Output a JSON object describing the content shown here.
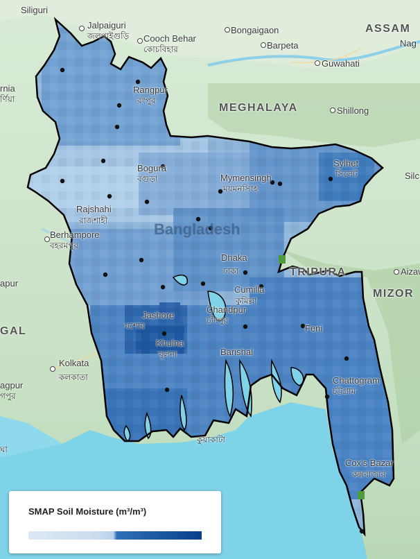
{
  "legend": {
    "title": "SMAP Soil Moisture (m³/m³)",
    "colors": [
      "#dde9f4",
      "#b8d1ea",
      "#2f6fb7",
      "#0b3f8c"
    ]
  },
  "map": {
    "country_label": "Bangladesh",
    "regions": [
      "ASSAM",
      "MEGHALAYA",
      "TRIPURA",
      "MIZOR",
      "GAL"
    ],
    "places": [
      {
        "name": "Siliguri",
        "local": ""
      },
      {
        "name": "Jalpaiguri",
        "local": "জলপাইগুড়ি"
      },
      {
        "name": "Cooch Behar",
        "local": "কোচবিহার"
      },
      {
        "name": "Bongaigaon",
        "local": ""
      },
      {
        "name": "Barpeta",
        "local": ""
      },
      {
        "name": "Guwahati",
        "local": ""
      },
      {
        "name": "Nag",
        "local": ""
      },
      {
        "name": "Shillong",
        "local": ""
      },
      {
        "name": "Rangpur",
        "local": "রংপুর"
      },
      {
        "name": "Sylhet",
        "local": "সিলেট"
      },
      {
        "name": "Silc",
        "local": ""
      },
      {
        "name": "Bogura",
        "local": "বগুড়া"
      },
      {
        "name": "Mymensingh",
        "local": "ময়মনসিংহ"
      },
      {
        "name": "Rajshahi",
        "local": "রাজশাহী"
      },
      {
        "name": "Berhampore",
        "local": "বহরমপুর"
      },
      {
        "name": "Dhaka",
        "local": "ঢাকা"
      },
      {
        "name": "Cumilla",
        "local": "কুমিল্লা"
      },
      {
        "name": "Aizaw",
        "local": ""
      },
      {
        "name": "Chandpur",
        "local": "চাঁদপুর"
      },
      {
        "name": "Jashore",
        "local": "যশোর"
      },
      {
        "name": "Khulna",
        "local": "খুলনা"
      },
      {
        "name": "Feni",
        "local": ""
      },
      {
        "name": "Barishal",
        "local": ""
      },
      {
        "name": "Kolkata",
        "local": "কলকাতা"
      },
      {
        "name": "Chattogram",
        "local": "চট্টগ্রাম"
      },
      {
        "name": "Kuakata",
        "local": "কুয়াকাটা"
      },
      {
        "name": "Cox's Bazar",
        "local": "কক্সবাজার"
      },
      {
        "name": "rnia",
        "local": "র্ণিয়া"
      },
      {
        "name": "apur",
        "local": ""
      },
      {
        "name": "agpur",
        "local": "গপুর"
      },
      {
        "name": "gha",
        "local": "ঘা"
      }
    ]
  }
}
